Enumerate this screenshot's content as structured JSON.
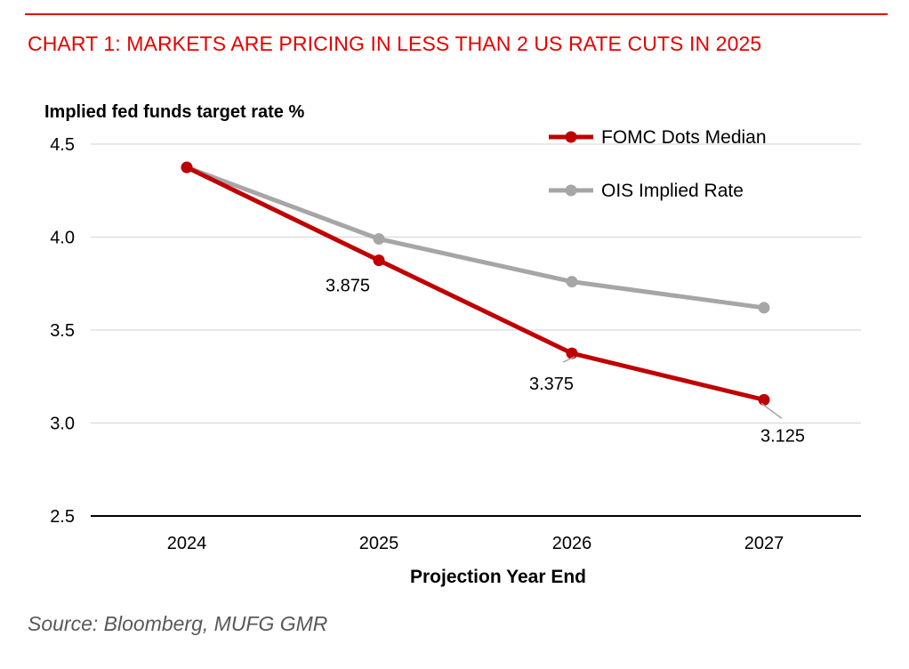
{
  "header": {
    "title": "CHART 1: MARKETS ARE PRICING IN LESS THAN 2 US RATE CUTS IN 2025"
  },
  "footer": {
    "source": "Source: Bloomberg, MUFG GMR"
  },
  "colors": {
    "title": "#e60000",
    "fomc": "#c00000",
    "ois": "#a6a6a6",
    "grid": "#d9d9d9",
    "axis": "#000000"
  },
  "chart_data": {
    "type": "line",
    "title": "CHART 1: MARKETS ARE PRICING IN LESS THAN 2 US RATE CUTS IN 2025",
    "xlabel": "Projection Year End",
    "ylabel": "Implied fed funds target rate %",
    "categories": [
      "2024",
      "2025",
      "2026",
      "2027"
    ],
    "ylim": [
      2.5,
      4.5
    ],
    "yticks": [
      "2.5",
      "3.0",
      "3.5",
      "4.0",
      "4.5"
    ],
    "grid": true,
    "legend_position": "top-right",
    "series": [
      {
        "name": "FOMC Dots Median",
        "values": [
          4.375,
          3.875,
          3.375,
          3.125
        ],
        "data_labels": [
          null,
          "3.875",
          "3.375",
          "3.125"
        ],
        "color": "#c00000"
      },
      {
        "name": "OIS Implied Rate",
        "values": [
          4.375,
          3.99,
          3.76,
          3.62
        ],
        "color": "#a6a6a6"
      }
    ]
  }
}
